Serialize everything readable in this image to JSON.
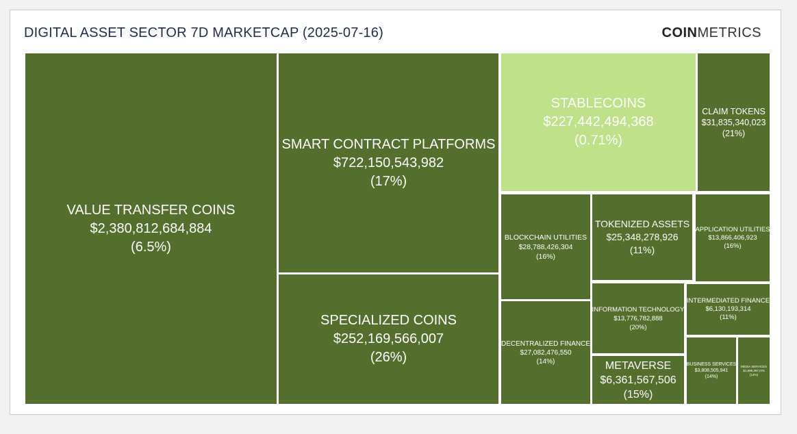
{
  "header": {
    "title": "DIGITAL ASSET SECTOR 7D MARKETCAP (2025-07-16)",
    "brand_bold": "COIN",
    "brand_regular": "METRICS"
  },
  "colors": {
    "tile_dark": "#546e2d",
    "tile_light": "#bfe18a",
    "gap": "#ffffff"
  },
  "chart_data": {
    "type": "treemap",
    "title": "DIGITAL ASSET SECTOR 7D MARKETCAP (2025-07-16)",
    "items": [
      {
        "name": "VALUE TRANSFER COINS",
        "value": 2380812684884,
        "label_value": "$2,380,812,684,884",
        "change": "(6.5%)"
      },
      {
        "name": "SMART CONTRACT PLATFORMS",
        "value": 722150543982,
        "label_value": "$722,150,543,982",
        "change": "(17%)"
      },
      {
        "name": "SPECIALIZED COINS",
        "value": 252169566007,
        "label_value": "$252,169,566,007",
        "change": "(26%)"
      },
      {
        "name": "STABLECOINS",
        "value": 227442494368,
        "label_value": "$227,442,494,368",
        "change": "(0.71%)",
        "highlight": true
      },
      {
        "name": "CLAIM TOKENS",
        "value": 31835340023,
        "label_value": "$31,835,340,023",
        "change": "(21%)"
      },
      {
        "name": "BLOCKCHAIN UTILITIES",
        "value": 28788426304,
        "label_value": "$28,788,426,304",
        "change": "(16%)"
      },
      {
        "name": "DECENTRALIZED FINANCE",
        "value": 27082476550,
        "label_value": "$27,082,476,550",
        "change": "(14%)"
      },
      {
        "name": "TOKENIZED ASSETS",
        "value": 25348278926,
        "label_value": "$25,348,278,926",
        "change": "(11%)"
      },
      {
        "name": "INFORMATION TECHNOLOGY",
        "value": 13776782888,
        "label_value": "$13,776,782,888",
        "change": "(20%)"
      },
      {
        "name": "APPLICATION UTILITIES",
        "value": 13866406923,
        "label_value": "$13,866,406,923",
        "change": "(16%)"
      },
      {
        "name": "METAVERSE",
        "value": 6361567506,
        "label_value": "$6,361,567,506",
        "change": "(15%)"
      },
      {
        "name": "INTERMEDIATED FINANCE",
        "value": 6130193314,
        "label_value": "$6,130,193,314",
        "change": "(11%)"
      },
      {
        "name": "BUSINESS SERVICES",
        "value": 3808505941,
        "label_value": "$3,808,505,941",
        "change": "(14%)"
      },
      {
        "name": "MEDIA SERVICES",
        "value": 1595297076,
        "label_value": "$1,595,297,076",
        "change": "(14%)"
      }
    ]
  }
}
